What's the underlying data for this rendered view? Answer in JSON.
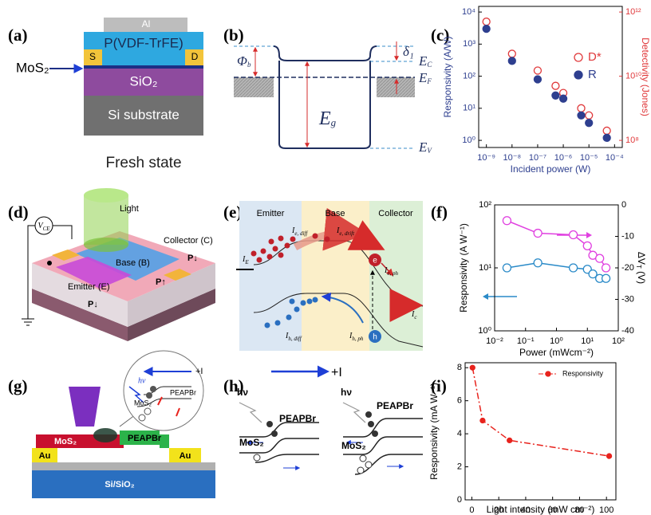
{
  "panel_labels": [
    "(a)",
    "(b)",
    "(c)",
    "(d)",
    "(e)",
    "(f)",
    "(g)",
    "(h)",
    "(i)"
  ],
  "a": {
    "top": "Al",
    "layer": "P(VDF-TrFE)",
    "source": "S",
    "drain": "D",
    "channel": "MoS₂",
    "oxide": "SiO₂",
    "substrate": "Si substrate",
    "caption": "Fresh state"
  },
  "b": {
    "phi": [
      "Φ",
      "b"
    ],
    "delta": "δ₁",
    "ec": [
      "E",
      "C"
    ],
    "ef": [
      "E",
      "F"
    ],
    "eg": [
      "E",
      "g"
    ],
    "ev": [
      "E",
      "V"
    ]
  },
  "d": {
    "vce": [
      "V",
      "CE"
    ],
    "light": "Light",
    "collector": "Collector (C)",
    "base": "Base (B)",
    "emitter": "Emitter (E)",
    "p_right": "P↓",
    "p_center": "P↑",
    "p_left": "P↓"
  },
  "e": {
    "emitter": "Emitter",
    "base": "Base",
    "collector": "Collector",
    "ie": [
      "I",
      "E"
    ],
    "ie_diff": [
      "I",
      "e, diff"
    ],
    "ie_drift": [
      "I",
      "e, drift"
    ],
    "ie_ph": [
      "I",
      "e, ph"
    ],
    "ic": [
      "I",
      "c"
    ],
    "ih_diff": [
      "I",
      "h, diff"
    ],
    "ih_ph": [
      "I",
      "h, ph"
    ],
    "electron": "e",
    "hole": "h"
  },
  "g": {
    "light": "hν",
    "current": "+I",
    "inset_top": "PEAPBr",
    "inset_bottom": "MoS₂",
    "left": "MoS₂",
    "right": "PEAPBr",
    "au_left": "Au",
    "au_right": "Au",
    "substrate": "Si/SiO₂"
  },
  "h": {
    "current": "+I",
    "left": {
      "light": "hν",
      "top": "PEAPBr",
      "bottom": "MoS₂"
    },
    "right": {
      "light": "hν",
      "top": "PEAPBr",
      "bottom": "MoS₂"
    }
  },
  "chart_data": [
    {
      "type": "scatter",
      "x_label": "Incident power (W)",
      "y_label": "Responsivity (A/W)",
      "y2_label": "Detectivity (Jones)",
      "x_log": true,
      "y_log": true,
      "y2_log": true,
      "xlim": [
        5e-10,
        0.0002
      ],
      "ylim": [
        0.6,
        15000
      ],
      "y2lim": [
        60000000.0,
        1500000000000.0
      ],
      "xticks": [
        {
          "value": 1e-09,
          "label": "10⁻⁹"
        },
        {
          "value": 1e-08,
          "label": "10⁻⁸"
        },
        {
          "value": 1e-07,
          "label": "10⁻⁷"
        },
        {
          "value": 1e-06,
          "label": "10⁻⁶"
        },
        {
          "value": 1e-05,
          "label": "10⁻⁵"
        },
        {
          "value": 0.0001,
          "label": "10⁻⁴"
        }
      ],
      "yticks": [
        {
          "value": 1,
          "label": "10⁰"
        },
        {
          "value": 10,
          "label": "10¹"
        },
        {
          "value": 100,
          "label": "10²"
        },
        {
          "value": 1000,
          "label": "10³"
        },
        {
          "value": 10000,
          "label": "10⁴"
        }
      ],
      "y2ticks": [
        {
          "value": 100000000.0,
          "label": "10⁸"
        },
        {
          "value": 10000000000.0,
          "label": "10¹⁰"
        },
        {
          "value": 1000000000000.0,
          "label": "10¹²"
        }
      ],
      "axis_colors": {
        "x": "#2e3f8f",
        "y": "#2e3f8f",
        "y2": "#e0393b"
      },
      "x": [
        1e-09,
        1e-08,
        1e-07,
        5e-07,
        1e-06,
        5e-06,
        1e-05,
        5e-05
      ],
      "series": [
        {
          "name": "D*",
          "color": "#e0393b",
          "marker": "open",
          "axis": "y2",
          "values": [
            500000000000.0,
            50000000000.0,
            15000000000.0,
            5000000000.0,
            3000000000.0,
            1000000000.0,
            600000000.0,
            200000000.0
          ]
        },
        {
          "name": "R",
          "color": "#2e3f8f",
          "marker": "filled",
          "values": [
            3000,
            300,
            80,
            25,
            20,
            6,
            3.5,
            1.2
          ]
        }
      ],
      "legend": "upper right"
    },
    {
      "type": "line",
      "x_label": "Power (mWcm⁻²)",
      "y_label": "Responsivity (A W⁻¹)",
      "y2_label": {
        "text": "ΔV",
        "sub": "T",
        "unit": " (V)"
      },
      "x_log": true,
      "y_log": true,
      "xlim": [
        0.01,
        100
      ],
      "ylim": [
        1,
        100
      ],
      "y2lim": [
        -40,
        0
      ],
      "xticks": [
        {
          "value": 0.01,
          "label": "10⁻²"
        },
        {
          "value": 0.1,
          "label": "10⁻¹"
        },
        {
          "value": 1,
          "label": "10⁰"
        },
        {
          "value": 10,
          "label": "10¹"
        },
        {
          "value": 100,
          "label": "10²"
        }
      ],
      "yticks": [
        {
          "value": 1,
          "label": "10⁰"
        },
        {
          "value": 10,
          "label": "10¹"
        },
        {
          "value": 100,
          "label": "10²"
        }
      ],
      "y2ticks": [
        -40,
        -30,
        -20,
        -10,
        0
      ],
      "x": [
        0.025,
        0.25,
        3.5,
        10,
        15,
        25,
        40
      ],
      "series": [
        {
          "color": "#e040e0",
          "marker": "open",
          "axis": "y2",
          "values": [
            -5,
            -9,
            -9.5,
            -13,
            -16,
            -17,
            -20
          ]
        },
        {
          "color": "#2a8ac8",
          "marker": "open",
          "values": [
            10,
            12,
            10,
            9.5,
            8,
            6.8,
            6.8
          ]
        }
      ]
    },
    {
      "type": "line",
      "x_label": "Light intensity (mW cm⁻²)",
      "y_label": "Responsivity (mA W⁻¹)",
      "xlim": [
        -5,
        107
      ],
      "ylim": [
        0,
        8.3
      ],
      "xticks": [
        0,
        20,
        40,
        60,
        80,
        100
      ],
      "yticks": [
        0,
        2,
        4,
        6,
        8
      ],
      "x": [
        0.5,
        8,
        28,
        102
      ],
      "series": [
        {
          "name": "Responsivity",
          "color": "#e8231d",
          "marker": "filled",
          "values": [
            8,
            4.8,
            3.6,
            2.65
          ]
        }
      ],
      "line_style": "dashdot",
      "legend": "upper right"
    }
  ]
}
